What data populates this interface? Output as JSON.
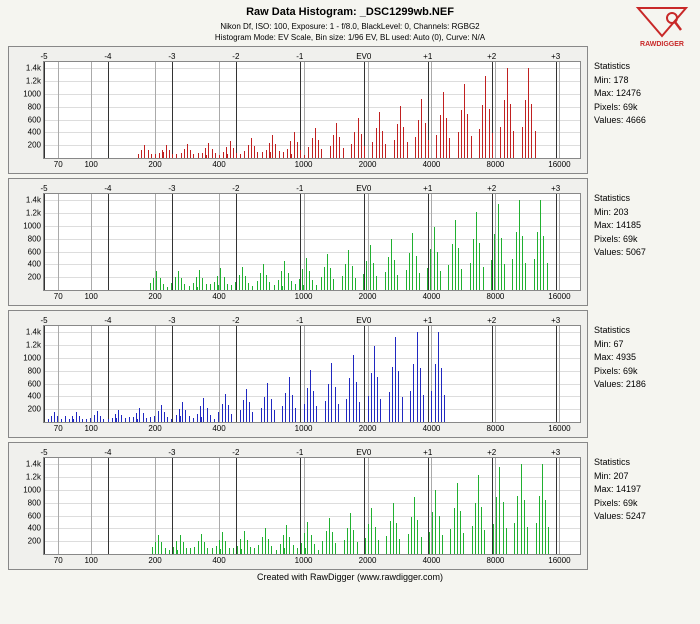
{
  "header": {
    "title": "Raw Data Histogram:  _DSC1299wb.NEF",
    "subtitle1": "Nikon Df, ISO: 100, Exposure: 1 - f/8.0, BlackLevel: 0, Channels: RGBG2",
    "subtitle2": "Histogram Mode: EV Scale, Bin size: 1/96 EV, BL used: Auto (0), Curve: N/A"
  },
  "footer": "Created with RawDigger (www.rawdigger.com)",
  "logo": {
    "top_text": "ρ",
    "bottom_text": "RAWDIGGER",
    "triangle_color": "#c82828",
    "text_color": "#c82828"
  },
  "axes": {
    "y_ticks": [
      {
        "v": 200,
        "label": "200"
      },
      {
        "v": 400,
        "label": "400"
      },
      {
        "v": 600,
        "label": "600"
      },
      {
        "v": 800,
        "label": "800"
      },
      {
        "v": 1000,
        "label": "1000"
      },
      {
        "v": 1200,
        "label": "1.2k"
      },
      {
        "v": 1400,
        "label": "1.4k"
      }
    ],
    "y_max": 1500,
    "x_ticks": [
      70,
      100,
      200,
      400,
      1000,
      2000,
      4000,
      8000,
      16000
    ],
    "x_log_min": 60,
    "x_log_max": 20000,
    "ev_markers": [
      {
        "label": "-5",
        "val": 60
      },
      {
        "label": "-4",
        "val": 120
      },
      {
        "label": "-3",
        "val": 240
      },
      {
        "label": "-2",
        "val": 480
      },
      {
        "label": "-1",
        "val": 960
      },
      {
        "label": "EV0",
        "val": 1920
      },
      {
        "label": "+1",
        "val": 3840
      },
      {
        "label": "+2",
        "val": 7680
      },
      {
        "label": "+3",
        "val": 15360
      }
    ]
  },
  "panels": [
    {
      "name": "red-channel",
      "color": "#c02020",
      "stats_label": "Statistics",
      "stats": [
        "Min: 178",
        "Max: 12476",
        "Pixels: 69k",
        "Values: 4666"
      ],
      "data_start": 178,
      "data_end": 12476,
      "cluster_base": 200,
      "cluster_growth_tail": 1.25
    },
    {
      "name": "green-channel",
      "color": "#20b030",
      "stats_label": "Statistics",
      "stats": [
        "Min: 203",
        "Max: 14185",
        "Pixels: 69k",
        "Values: 5067"
      ],
      "data_start": 203,
      "data_end": 14185,
      "cluster_base": 300,
      "cluster_growth_tail": 1.2
    },
    {
      "name": "blue-channel",
      "color": "#2028c0",
      "stats_label": "Statistics",
      "stats": [
        "Min: 67",
        "Max: 4935",
        "Pixels: 69k",
        "Values: 2186"
      ],
      "data_start": 67,
      "data_end": 4935,
      "cluster_base": 150,
      "cluster_growth_tail": 1.35
    },
    {
      "name": "green2-channel",
      "color": "#20b030",
      "stats_label": "Statistics",
      "stats": [
        "Min: 207",
        "Max: 14197",
        "Pixels: 69k",
        "Values: 5247"
      ],
      "data_start": 207,
      "data_end": 14197,
      "cluster_base": 300,
      "cluster_growth_tail": 1.22
    }
  ]
}
